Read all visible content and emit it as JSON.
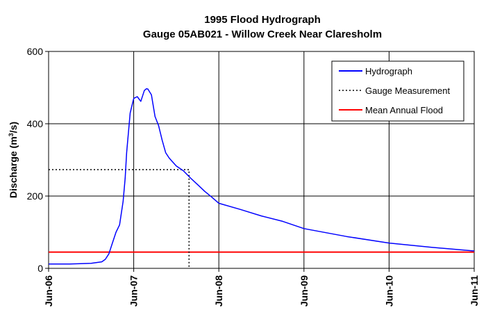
{
  "chart_data": {
    "type": "line",
    "title": "1995 Flood Hydrograph",
    "subtitle": "Gauge 05AB021 - Willow Creek Near Claresholm",
    "ylabel_main": "Discharge (m",
    "ylabel_sup": "3",
    "ylabel_tail": "/s)",
    "xlabel": "",
    "xlim": [
      "1995-06-06",
      "1995-06-11"
    ],
    "ylim": [
      0,
      600
    ],
    "yticks": [
      0,
      200,
      400,
      600
    ],
    "xtick_labels": [
      "Jun-06",
      "Jun-07",
      "Jun-08",
      "Jun-09",
      "Jun-10",
      "Jun-11"
    ],
    "grid": true,
    "legend_position": "top-right",
    "series": [
      {
        "name": "Hydrograph",
        "color": "#0000ff",
        "style": "solid",
        "x": [
          "1995-06-06 00:00",
          "1995-06-06 06:00",
          "1995-06-06 12:00",
          "1995-06-06 15:00",
          "1995-06-06 16:00",
          "1995-06-06 17:00",
          "1995-06-06 18:00",
          "1995-06-06 19:00",
          "1995-06-06 20:00",
          "1995-06-06 21:00",
          "1995-06-06 21:36",
          "1995-06-06 22:00",
          "1995-06-06 23:00",
          "1995-06-07 00:00",
          "1995-06-07 01:00",
          "1995-06-07 02:00",
          "1995-06-07 03:00",
          "1995-06-07 03:36",
          "1995-06-07 04:00",
          "1995-06-07 05:00",
          "1995-06-07 06:00",
          "1995-06-07 07:00",
          "1995-06-07 08:00",
          "1995-06-07 09:00",
          "1995-06-07 10:00",
          "1995-06-07 12:00",
          "1995-06-07 14:00",
          "1995-06-07 16:00",
          "1995-06-07 18:00",
          "1995-06-07 20:00",
          "1995-06-07 22:00",
          "1995-06-08 00:00",
          "1995-06-08 06:00",
          "1995-06-08 12:00",
          "1995-06-08 18:00",
          "1995-06-09 00:00",
          "1995-06-09 12:00",
          "1995-06-10 00:00",
          "1995-06-10 12:00",
          "1995-06-11 00:00"
        ],
        "values": [
          12,
          12,
          14,
          18,
          25,
          40,
          70,
          100,
          120,
          185,
          250,
          320,
          430,
          470,
          475,
          462,
          492,
          497,
          496,
          480,
          420,
          395,
          355,
          320,
          305,
          283,
          270,
          250,
          232,
          213,
          197,
          180,
          163,
          145,
          130,
          110,
          88,
          70,
          58,
          48
        ]
      },
      {
        "name": "Gauge Measurement",
        "color": "#000000",
        "style": "dotted",
        "x": "1995-06-07 15:36",
        "y": 273
      },
      {
        "name": "Mean Annual Flood",
        "color": "#ff0000",
        "style": "solid",
        "y": 45
      }
    ]
  }
}
